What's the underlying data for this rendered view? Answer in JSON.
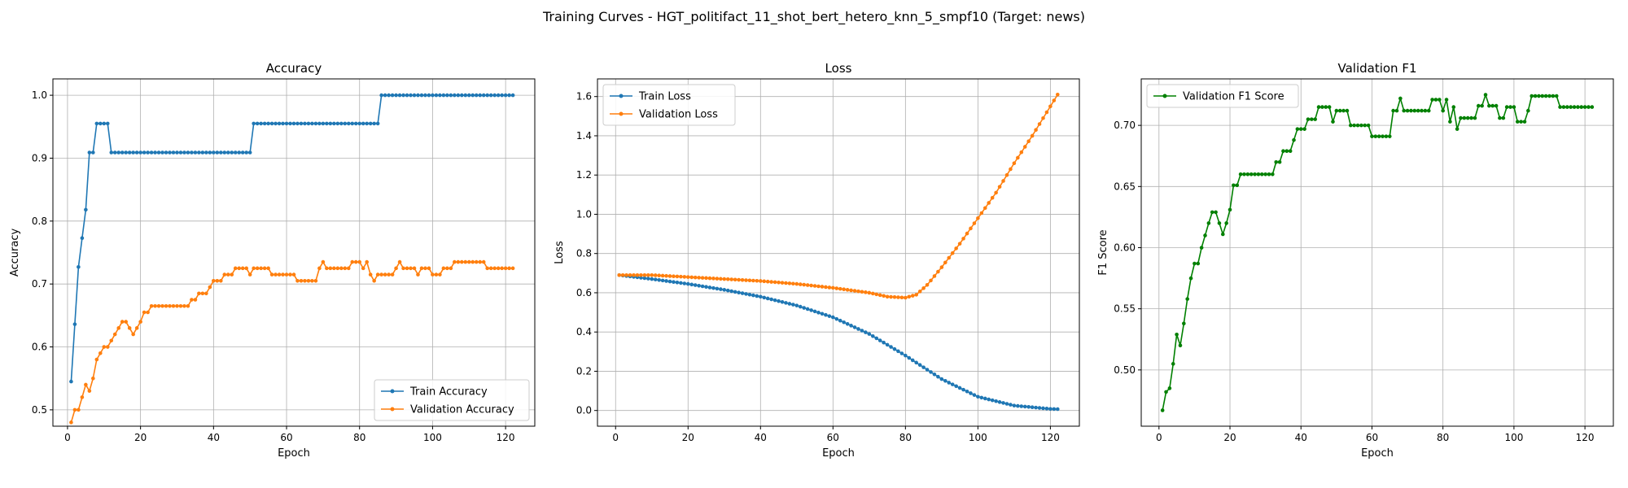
{
  "figure": {
    "suptitle": "Training Curves - HGT_politifact_11_shot_bert_hetero_knn_5_smpf10 (Target: news)"
  },
  "chart_data": [
    {
      "type": "line",
      "title": "Accuracy",
      "xlabel": "Epoch",
      "ylabel": "Accuracy",
      "xlim": [
        -4,
        128
      ],
      "ylim": [
        0.474,
        1.026
      ],
      "xticks": [
        0,
        20,
        40,
        60,
        80,
        100,
        120
      ],
      "xtick_labels": [
        "0",
        "20",
        "40",
        "60",
        "80",
        "100",
        "120"
      ],
      "yticks": [
        0.5,
        0.6,
        0.7,
        0.8,
        0.9,
        1.0
      ],
      "ytick_labels": [
        "0.5",
        "0.6",
        "0.7",
        "0.8",
        "0.9",
        "1.0"
      ],
      "grid": true,
      "legend_position": "lower-right",
      "series": [
        {
          "name": "Train Accuracy",
          "color": "#1f77b4",
          "keypoints": [
            [
              1,
              0.545
            ],
            [
              2,
              0.636
            ],
            [
              3,
              0.727
            ],
            [
              4,
              0.773
            ],
            [
              5,
              0.818
            ],
            [
              6,
              0.909
            ],
            [
              7,
              0.909
            ],
            [
              8,
              0.955
            ],
            [
              11,
              0.955
            ],
            [
              12,
              0.909
            ],
            [
              50,
              0.909
            ],
            [
              51,
              0.955
            ],
            [
              85,
              0.955
            ],
            [
              86,
              1.0
            ],
            [
              122,
              1.0
            ]
          ]
        },
        {
          "name": "Validation Accuracy",
          "color": "#ff7f0e",
          "keypoints": [
            [
              1,
              0.48
            ],
            [
              2,
              0.5
            ],
            [
              3,
              0.5
            ],
            [
              4,
              0.52
            ],
            [
              5,
              0.54
            ],
            [
              6,
              0.53
            ],
            [
              7,
              0.55
            ],
            [
              8,
              0.58
            ],
            [
              9,
              0.59
            ],
            [
              10,
              0.6
            ],
            [
              11,
              0.6
            ],
            [
              12,
              0.61
            ],
            [
              13,
              0.62
            ],
            [
              14,
              0.63
            ],
            [
              15,
              0.64
            ],
            [
              16,
              0.64
            ],
            [
              17,
              0.63
            ],
            [
              18,
              0.62
            ],
            [
              19,
              0.63
            ],
            [
              20,
              0.64
            ],
            [
              21,
              0.655
            ],
            [
              22,
              0.655
            ],
            [
              23,
              0.665
            ],
            [
              33,
              0.665
            ],
            [
              34,
              0.675
            ],
            [
              35,
              0.675
            ],
            [
              36,
              0.685
            ],
            [
              38,
              0.685
            ],
            [
              39,
              0.695
            ],
            [
              40,
              0.705
            ],
            [
              42,
              0.705
            ],
            [
              43,
              0.715
            ],
            [
              45,
              0.715
            ],
            [
              46,
              0.725
            ],
            [
              49,
              0.725
            ],
            [
              50,
              0.715
            ],
            [
              51,
              0.725
            ],
            [
              55,
              0.725
            ],
            [
              56,
              0.715
            ],
            [
              62,
              0.715
            ],
            [
              63,
              0.705
            ],
            [
              68,
              0.705
            ],
            [
              69,
              0.725
            ],
            [
              70,
              0.735
            ],
            [
              71,
              0.725
            ],
            [
              77,
              0.725
            ],
            [
              78,
              0.735
            ],
            [
              80,
              0.735
            ],
            [
              81,
              0.725
            ],
            [
              82,
              0.735
            ],
            [
              83,
              0.715
            ],
            [
              84,
              0.705
            ],
            [
              85,
              0.715
            ],
            [
              89,
              0.715
            ],
            [
              90,
              0.725
            ],
            [
              91,
              0.735
            ],
            [
              92,
              0.725
            ],
            [
              95,
              0.725
            ],
            [
              96,
              0.715
            ],
            [
              97,
              0.725
            ],
            [
              99,
              0.725
            ],
            [
              100,
              0.715
            ],
            [
              102,
              0.715
            ],
            [
              103,
              0.725
            ],
            [
              105,
              0.725
            ],
            [
              106,
              0.735
            ],
            [
              114,
              0.735
            ],
            [
              115,
              0.725
            ],
            [
              122,
              0.725
            ]
          ]
        }
      ]
    },
    {
      "type": "line",
      "title": "Loss",
      "xlabel": "Epoch",
      "ylabel": "Loss",
      "xlim": [
        -5,
        128
      ],
      "ylim": [
        -0.08,
        1.69
      ],
      "xticks": [
        0,
        20,
        40,
        60,
        80,
        100,
        120
      ],
      "xtick_labels": [
        "0",
        "20",
        "40",
        "60",
        "80",
        "100",
        "120"
      ],
      "yticks": [
        0.0,
        0.2,
        0.4,
        0.6,
        0.8,
        1.0,
        1.2,
        1.4,
        1.6
      ],
      "ytick_labels": [
        "0.0",
        "0.2",
        "0.4",
        "0.6",
        "0.8",
        "1.0",
        "1.2",
        "1.4",
        "1.6"
      ],
      "grid": true,
      "legend_position": "upper-left",
      "series": [
        {
          "name": "Train Loss",
          "color": "#1f77b4",
          "keypoints": [
            [
              1,
              0.69
            ],
            [
              10,
              0.67
            ],
            [
              20,
              0.645
            ],
            [
              30,
              0.615
            ],
            [
              40,
              0.58
            ],
            [
              50,
              0.535
            ],
            [
              60,
              0.475
            ],
            [
              70,
              0.39
            ],
            [
              80,
              0.28
            ],
            [
              90,
              0.16
            ],
            [
              100,
              0.07
            ],
            [
              110,
              0.025
            ],
            [
              120,
              0.008
            ],
            [
              122,
              0.007
            ]
          ]
        },
        {
          "name": "Validation Loss",
          "color": "#ff7f0e",
          "keypoints": [
            [
              1,
              0.69
            ],
            [
              10,
              0.69
            ],
            [
              20,
              0.68
            ],
            [
              30,
              0.67
            ],
            [
              40,
              0.66
            ],
            [
              50,
              0.645
            ],
            [
              60,
              0.625
            ],
            [
              70,
              0.6
            ],
            [
              75,
              0.58
            ],
            [
              80,
              0.575
            ],
            [
              83,
              0.59
            ],
            [
              86,
              0.64
            ],
            [
              90,
              0.73
            ],
            [
              95,
              0.85
            ],
            [
              100,
              0.98
            ],
            [
              105,
              1.11
            ],
            [
              110,
              1.26
            ],
            [
              115,
              1.4
            ],
            [
              120,
              1.55
            ],
            [
              122,
              1.61
            ]
          ]
        }
      ]
    },
    {
      "type": "line",
      "title": "Validation F1",
      "xlabel": "Epoch",
      "ylabel": "F1 Score",
      "xlim": [
        -5,
        128
      ],
      "ylim": [
        0.454,
        0.738
      ],
      "xticks": [
        0,
        20,
        40,
        60,
        80,
        100,
        120
      ],
      "xtick_labels": [
        "0",
        "20",
        "40",
        "60",
        "80",
        "100",
        "120"
      ],
      "yticks": [
        0.5,
        0.55,
        0.6,
        0.65,
        0.7
      ],
      "ytick_labels": [
        "0.50",
        "0.55",
        "0.60",
        "0.65",
        "0.70"
      ],
      "grid": true,
      "legend_position": "upper-left",
      "series": [
        {
          "name": "Validation F1 Score",
          "color": "#008000",
          "keypoints": [
            [
              1,
              0.467
            ],
            [
              2,
              0.482
            ],
            [
              3,
              0.485
            ],
            [
              4,
              0.505
            ],
            [
              5,
              0.529
            ],
            [
              6,
              0.52
            ],
            [
              7,
              0.538
            ],
            [
              8,
              0.558
            ],
            [
              9,
              0.575
            ],
            [
              10,
              0.587
            ],
            [
              11,
              0.587
            ],
            [
              12,
              0.6
            ],
            [
              13,
              0.61
            ],
            [
              14,
              0.62
            ],
            [
              15,
              0.629
            ],
            [
              16,
              0.629
            ],
            [
              17,
              0.62
            ],
            [
              18,
              0.611
            ],
            [
              19,
              0.62
            ],
            [
              20,
              0.631
            ],
            [
              21,
              0.651
            ],
            [
              22,
              0.651
            ],
            [
              23,
              0.66
            ],
            [
              32,
              0.66
            ],
            [
              33,
              0.67
            ],
            [
              34,
              0.67
            ],
            [
              35,
              0.679
            ],
            [
              37,
              0.679
            ],
            [
              38,
              0.688
            ],
            [
              39,
              0.697
            ],
            [
              41,
              0.697
            ],
            [
              42,
              0.705
            ],
            [
              44,
              0.705
            ],
            [
              45,
              0.715
            ],
            [
              48,
              0.715
            ],
            [
              49,
              0.703
            ],
            [
              50,
              0.712
            ],
            [
              53,
              0.712
            ],
            [
              54,
              0.7
            ],
            [
              59,
              0.7
            ],
            [
              60,
              0.691
            ],
            [
              65,
              0.691
            ],
            [
              66,
              0.712
            ],
            [
              67,
              0.712
            ],
            [
              68,
              0.722
            ],
            [
              69,
              0.712
            ],
            [
              76,
              0.712
            ],
            [
              77,
              0.721
            ],
            [
              79,
              0.721
            ],
            [
              80,
              0.712
            ],
            [
              81,
              0.721
            ],
            [
              82,
              0.703
            ],
            [
              83,
              0.715
            ],
            [
              84,
              0.697
            ],
            [
              85,
              0.706
            ],
            [
              89,
              0.706
            ],
            [
              90,
              0.716
            ],
            [
              91,
              0.716
            ],
            [
              92,
              0.725
            ],
            [
              93,
              0.716
            ],
            [
              95,
              0.716
            ],
            [
              96,
              0.706
            ],
            [
              97,
              0.706
            ],
            [
              98,
              0.715
            ],
            [
              100,
              0.715
            ],
            [
              101,
              0.703
            ],
            [
              103,
              0.703
            ],
            [
              104,
              0.712
            ],
            [
              105,
              0.724
            ],
            [
              112,
              0.724
            ],
            [
              113,
              0.715
            ],
            [
              122,
              0.715
            ]
          ]
        }
      ]
    }
  ]
}
